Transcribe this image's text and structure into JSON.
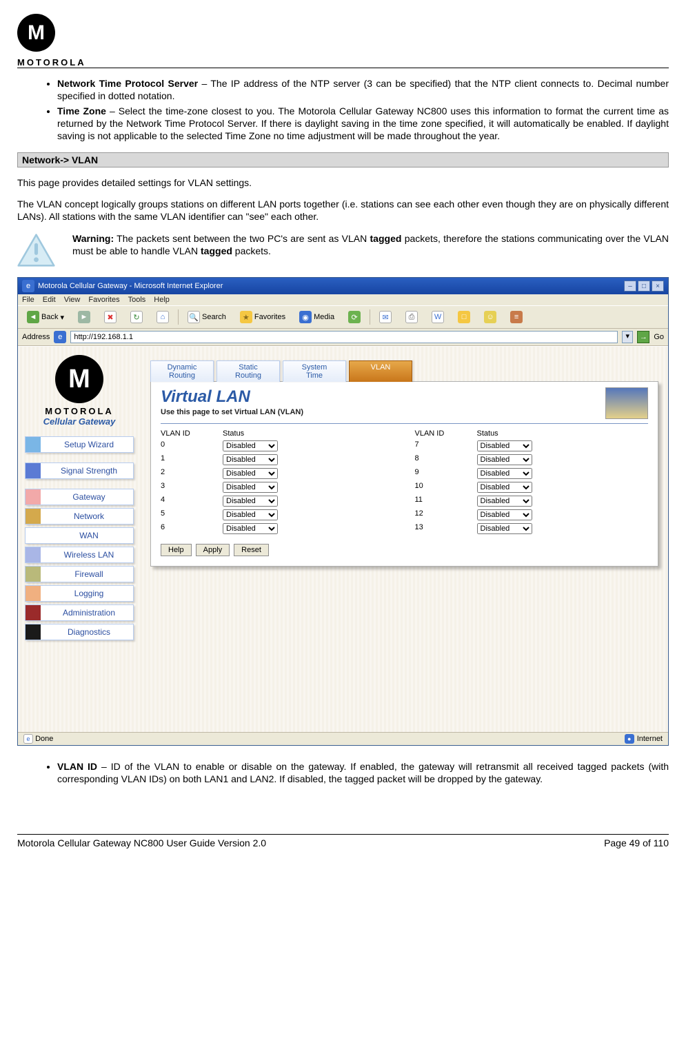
{
  "header": {
    "brand": "MOTOROLA",
    "logo_letter": "M"
  },
  "bullets_top": [
    {
      "term": "Network Time Protocol Server",
      "text": " – The IP address of the NTP server (3 can be specified) that the NTP client connects to. Decimal number specified in dotted notation."
    },
    {
      "term": "Time Zone",
      "text": " – Select the time-zone closest to you. The Motorola Cellular Gateway NC800 uses this information to format the current time as returned by the Network Time Protocol Server. If there is daylight saving in the time zone specified, it will automatically be enabled. If daylight saving is not applicable to the selected Time Zone no time adjustment will be made throughout the year."
    }
  ],
  "section_header": "Network-> VLAN",
  "para1": "This page provides detailed settings for VLAN settings.",
  "para2": "The VLAN concept logically groups stations on different LAN ports together (i.e. stations can see each other even though they are on physically different LANs). All stations with the same VLAN identifier can \"see\" each other.",
  "warning": {
    "lead": "Warning:",
    "t1": " The packets sent between the two PC's are sent as VLAN ",
    "b1": "tagged",
    "t2": " packets, therefore the stations communicating over the VLAN must be able to handle VLAN ",
    "b2": "tagged",
    "t3": " packets."
  },
  "ie": {
    "title": "Motorola Cellular Gateway - Microsoft Internet Explorer",
    "menu": [
      "File",
      "Edit",
      "View",
      "Favorites",
      "Tools",
      "Help"
    ],
    "toolbar": {
      "back": "Back",
      "search": "Search",
      "favorites": "Favorites",
      "media": "Media"
    },
    "addr_label": "Address",
    "addr_value": "http://192.168.1.1",
    "go": "Go",
    "status_left": "Done",
    "status_right": "Internet"
  },
  "sidebar": {
    "brand": "MOTOROLA",
    "sub": "Cellular Gateway",
    "groups": [
      [
        {
          "label": "Setup Wizard",
          "color": "#7ab6e6"
        }
      ],
      [
        {
          "label": "Signal Strength",
          "color": "#5b7bd4"
        }
      ],
      [
        {
          "label": "Gateway",
          "color": "#f2a9a9"
        },
        {
          "label": "Network",
          "color": "#d4a94c"
        },
        {
          "label": "WAN",
          "color": "#ffffff"
        },
        {
          "label": "Wireless LAN",
          "color": "#a9b6e6"
        },
        {
          "label": "Firewall",
          "color": "#b9b97a"
        },
        {
          "label": "Logging",
          "color": "#f0b080"
        },
        {
          "label": "Administration",
          "color": "#9a2a2a"
        },
        {
          "label": "Diagnostics",
          "color": "#1a1a1a"
        }
      ]
    ]
  },
  "tabs": [
    {
      "label": "Dynamic Routing",
      "active": false
    },
    {
      "label": "Static Routing",
      "active": false
    },
    {
      "label": "System Time",
      "active": false
    },
    {
      "label": "VLAN",
      "active": true
    }
  ],
  "panel": {
    "title": "Virtual LAN",
    "subtitle": "Use this page to set Virtual LAN (VLAN)",
    "col1_hd": "VLAN ID",
    "col2_hd": "Status",
    "col3_hd": "VLAN ID",
    "col4_hd": "Status",
    "rows": [
      {
        "l": "0",
        "r": "7"
      },
      {
        "l": "1",
        "r": "8"
      },
      {
        "l": "2",
        "r": "9"
      },
      {
        "l": "3",
        "r": "10"
      },
      {
        "l": "4",
        "r": "11"
      },
      {
        "l": "5",
        "r": "12"
      },
      {
        "l": "6",
        "r": "13"
      }
    ],
    "select_value": "Disabled",
    "buttons": [
      "Help",
      "Apply",
      "Reset"
    ]
  },
  "bullets_bottom": [
    {
      "term": "VLAN ID",
      "text": " – ID of the VLAN to enable or disable on the gateway. If enabled, the gateway will retransmit all received tagged packets (with corresponding VLAN IDs) on both LAN1 and LAN2. If disabled, the tagged packet will be dropped by the gateway."
    }
  ],
  "footer": {
    "left": "Motorola Cellular Gateway NC800 User Guide Version 2.0",
    "right": "Page 49 of 110"
  },
  "colors": {
    "titlebar_a": "#2a5fc1",
    "titlebar_b": "#1745a2",
    "tab_active_a": "#e7a84a",
    "tab_active_b": "#c8761a"
  }
}
